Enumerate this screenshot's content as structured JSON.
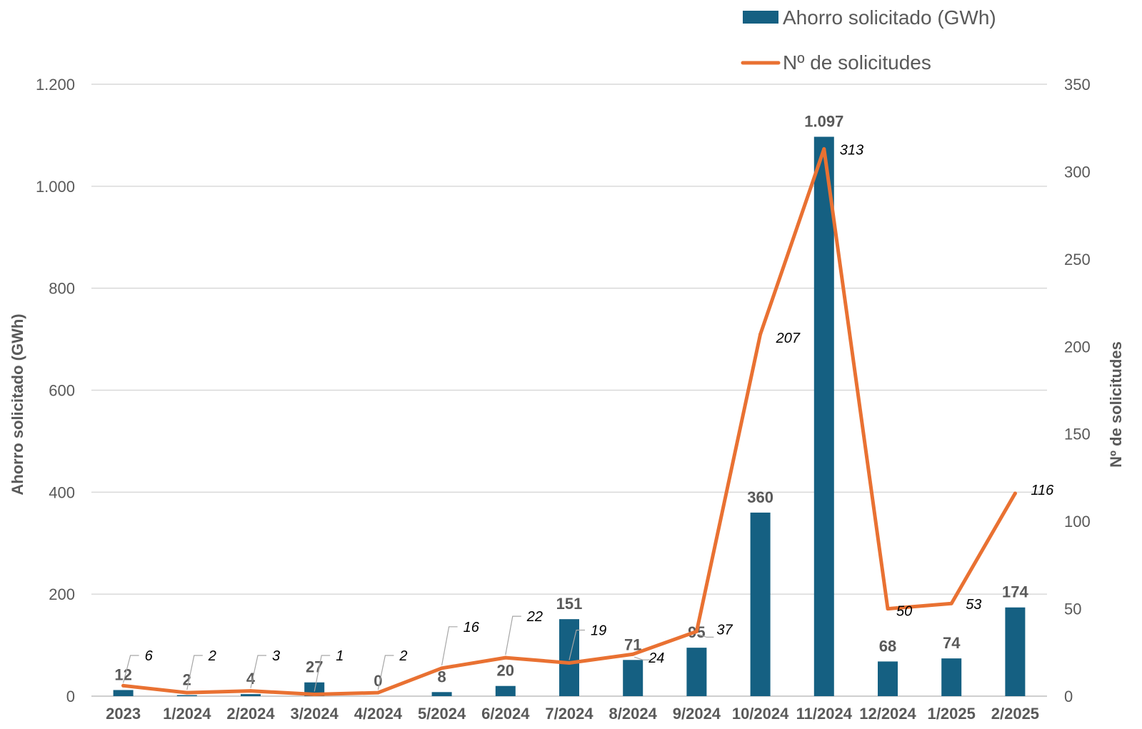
{
  "chart_data": {
    "type": "bar+line",
    "categories": [
      "2023",
      "1/2024",
      "2/2024",
      "3/2024",
      "4/2024",
      "5/2024",
      "6/2024",
      "7/2024",
      "8/2024",
      "9/2024",
      "10/2024",
      "11/2024",
      "12/2024",
      "1/2025",
      "2/2025"
    ],
    "series": [
      {
        "name": "Ahorro solicitado (GWh)",
        "type": "bar",
        "axis": "left",
        "color": "#156082",
        "values": [
          12,
          2,
          4,
          27,
          0,
          8,
          20,
          151,
          71,
          95,
          360,
          1097,
          68,
          74,
          174
        ],
        "labels": [
          "12",
          "2",
          "4",
          "27",
          "0",
          "8",
          "20",
          "151",
          "71",
          "95",
          "360",
          "1.097",
          "68",
          "74",
          "174"
        ]
      },
      {
        "name": "Nº de solicitudes",
        "type": "line",
        "axis": "right",
        "color": "#E97132",
        "values": [
          6,
          2,
          3,
          1,
          2,
          16,
          22,
          19,
          24,
          37,
          207,
          313,
          50,
          53,
          116
        ],
        "labels": [
          "6",
          "2",
          "3",
          "1",
          "2",
          "16",
          "22",
          "19",
          "24",
          "37",
          "207",
          "313",
          "50",
          "53",
          "116"
        ]
      }
    ],
    "y_left": {
      "label": "Ahorro solicitado (GWh)",
      "range": [
        0,
        1200
      ],
      "ticks": [
        0,
        200,
        400,
        600,
        800,
        1000,
        1200
      ],
      "tick_labels": [
        "0",
        "200",
        "400",
        "600",
        "800",
        "1.000",
        "1.200"
      ]
    },
    "y_right": {
      "label": "Nº de solicitudes",
      "range": [
        0,
        350
      ],
      "ticks": [
        0,
        50,
        100,
        150,
        200,
        250,
        300,
        350
      ],
      "tick_labels": [
        "0",
        "50",
        "100",
        "150",
        "200",
        "250",
        "300",
        "350"
      ]
    },
    "grid": true,
    "legend_position": "top-right"
  }
}
